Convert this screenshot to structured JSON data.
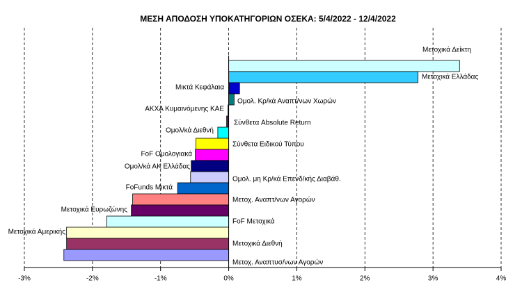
{
  "chart_data": {
    "type": "barh",
    "title": "ΜΕΣΗ ΑΠΟΔΟΣΗ ΥΠΟΚΑΤΗΓΟΡΙΩΝ  ΟΣΕΚΑ:  5/4/2022 - 12/4/2022",
    "categories": [
      "Μετοχικά Δείκτη",
      "Μετοχικά Ελλάδας",
      "Μικτά Κεφάλαια",
      "Ομολ. Κρ/κά Αναπτ/νων Χωρών",
      "ΑΚΧΑ Κυμαινόμενης ΚΑΕ",
      "Σύνθετα Absolute Return",
      "Ομολ/κά Διεθνή",
      "Σύνθετα Ειδικού Τύπου",
      "FoF Ομολογιακά",
      "Ομολ/κά ΑΚ Ελλάδας",
      "Ομολ. μη Κρ/κά Επενδ/κής Διαβάθ.",
      "FoFunds Μικτά",
      "Μετοχ. Αναπτ/νων Αγορών",
      "Μετοχικά Ευρωζώνης",
      "FoF Μετοχικά",
      "Μετοχικά Αμερικής",
      "Μετοχικά Διεθνή",
      "Μετοχ. Αναπτυσ/νων Αγορών"
    ],
    "values": [
      3.39,
      2.78,
      0.16,
      0.08,
      -0.01,
      -0.03,
      -0.16,
      -0.48,
      -0.49,
      -0.55,
      -0.56,
      -0.75,
      -1.41,
      -1.43,
      -1.79,
      -2.38,
      -2.38,
      -2.42
    ],
    "colors": [
      "#ccffff",
      "#33ccff",
      "#0000cc",
      "#008080",
      "#000080",
      "#800080",
      "#00ffff",
      "#ffff00",
      "#ff00ff",
      "#000080",
      "#ccccff",
      "#0066cc",
      "#ff8080",
      "#660066",
      "#ccffff",
      "#ffffcc",
      "#993366",
      "#9999ff"
    ],
    "xlim": [
      -3,
      4
    ],
    "xticks": [
      {
        "value": -3,
        "label": "-3%"
      },
      {
        "value": -2,
        "label": "-2%"
      },
      {
        "value": -1,
        "label": "-1%"
      },
      {
        "value": 0,
        "label": "0%"
      },
      {
        "value": 1,
        "label": "1%"
      },
      {
        "value": 2,
        "label": "2%"
      },
      {
        "value": 3,
        "label": "3%"
      },
      {
        "value": 4,
        "label": "4%"
      }
    ],
    "grid": true
  }
}
